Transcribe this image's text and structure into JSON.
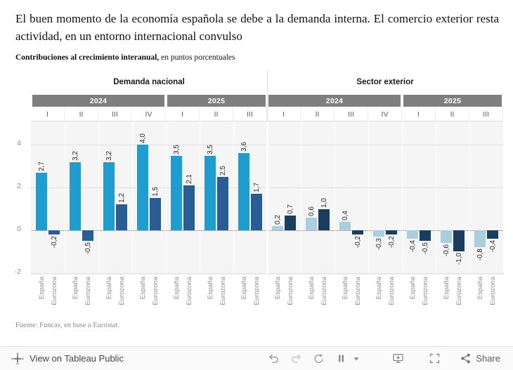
{
  "header": {
    "title": "El buen momento de la economía española se debe a la demanda interna. El comercio exterior resta actividad, en un entorno internacional convulso",
    "subtitle_bold": "Contribuciones al crecimiento interanual,",
    "subtitle_regular": " en puntos porcentuales"
  },
  "chart_data": {
    "type": "bar",
    "unit": "puntos porcentuales",
    "ylim": [
      -2.1,
      5.1
    ],
    "yticks": [
      -2,
      0,
      2,
      4
    ],
    "grid": "horizontal-dotted",
    "legend_position": "none",
    "year_band_color": "#7f7f7f",
    "panels": [
      {
        "label": "Demanda nacional",
        "year_groups": [
          {
            "year": "2024",
            "quarters": [
              "I",
              "II",
              "III",
              "IV"
            ]
          },
          {
            "year": "2025",
            "quarters": [
              "I",
              "II",
              "III"
            ]
          }
        ],
        "series": [
          {
            "name": "España",
            "color": "#1f9dce",
            "values": [
              2.7,
              3.2,
              3.2,
              4.0,
              3.5,
              3.5,
              3.6
            ]
          },
          {
            "name": "Eurozona",
            "color": "#2a5c96",
            "values": [
              -0.2,
              -0.5,
              1.2,
              1.5,
              2.1,
              2.5,
              1.7
            ]
          }
        ]
      },
      {
        "label": "Sector exterior",
        "year_groups": [
          {
            "year": "2024",
            "quarters": [
              "I",
              "II",
              "III",
              "IV"
            ]
          },
          {
            "year": "2025",
            "quarters": [
              "I",
              "II",
              "III"
            ]
          }
        ],
        "series": [
          {
            "name": "España",
            "color": "#a9cede",
            "values": [
              0.2,
              0.6,
              0.4,
              -0.3,
              -0.4,
              -0.6,
              -0.8
            ]
          },
          {
            "name": "Eurozona",
            "color": "#1a3e5f",
            "values": [
              0.7,
              1.0,
              -0.2,
              -0.2,
              -0.5,
              -1.0,
              -0.4
            ]
          }
        ]
      }
    ]
  },
  "footer": {
    "source": "Fuente: Funcas, en base a Eurostat."
  },
  "toolbar": {
    "view_label": "View on Tableau Public",
    "share_label": "Share",
    "icons": [
      "tableau-logo-icon",
      "undo-icon",
      "redo-icon",
      "revert-icon",
      "pause-icon",
      "caret-down-icon",
      "download-icon",
      "fullscreen-icon",
      "share-icon"
    ]
  }
}
